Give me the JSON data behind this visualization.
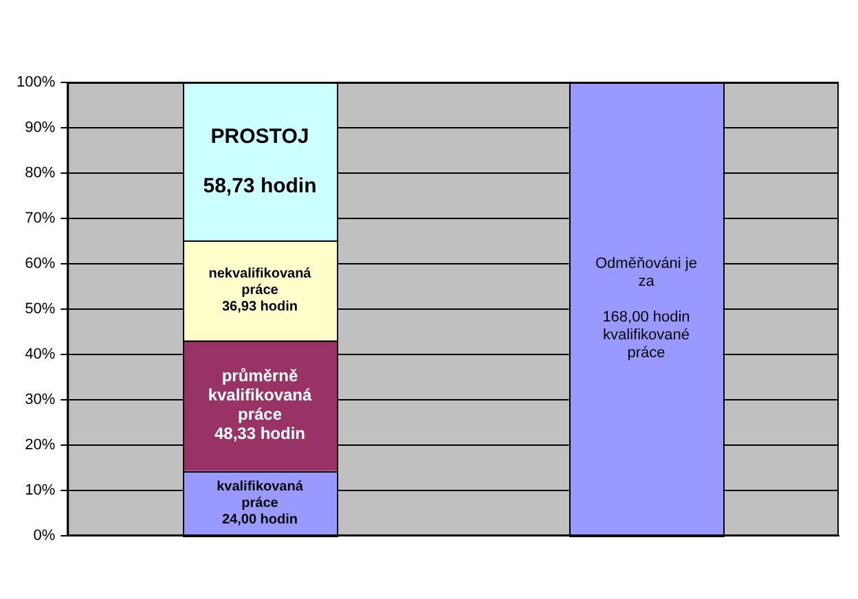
{
  "chart_data": {
    "type": "bar",
    "categories": [
      null,
      null
    ],
    "stacked": true,
    "series": [
      {
        "name": "kvalifikovaná práce 24,00 hodin",
        "color": "#9999ff",
        "values": [
          14.3,
          null
        ]
      },
      {
        "name": "průměrně kvalifikovaná práce 48,33 hodin",
        "color": "#993366",
        "values": [
          28.8,
          null
        ]
      },
      {
        "name": "nekvalifikovaná práce 36,93 hodin",
        "color": "#ffffcc",
        "values": [
          22.0,
          null
        ]
      },
      {
        "name": "PROSTOJ 58,73 hodin",
        "color": "#ccffff",
        "values": [
          34.9,
          null
        ]
      },
      {
        "name": "Odměňováni je za 168,00 hodin kvalifikované práce",
        "color": "#9999ff",
        "values": [
          null,
          100
        ]
      }
    ],
    "ylim": [
      0,
      100
    ],
    "yticks": [
      {
        "value": 0,
        "label": "0%"
      },
      {
        "value": 10,
        "label": "10%"
      },
      {
        "value": 20,
        "label": "20%"
      },
      {
        "value": 30,
        "label": "30%"
      },
      {
        "value": 40,
        "label": "40%"
      },
      {
        "value": 50,
        "label": "50%"
      },
      {
        "value": 60,
        "label": "60%"
      },
      {
        "value": 70,
        "label": "70%"
      },
      {
        "value": 80,
        "label": "80%"
      },
      {
        "value": 90,
        "label": "90%"
      },
      {
        "value": 100,
        "label": "100%"
      }
    ],
    "grid": "y",
    "tick_labels": "y"
  }
}
